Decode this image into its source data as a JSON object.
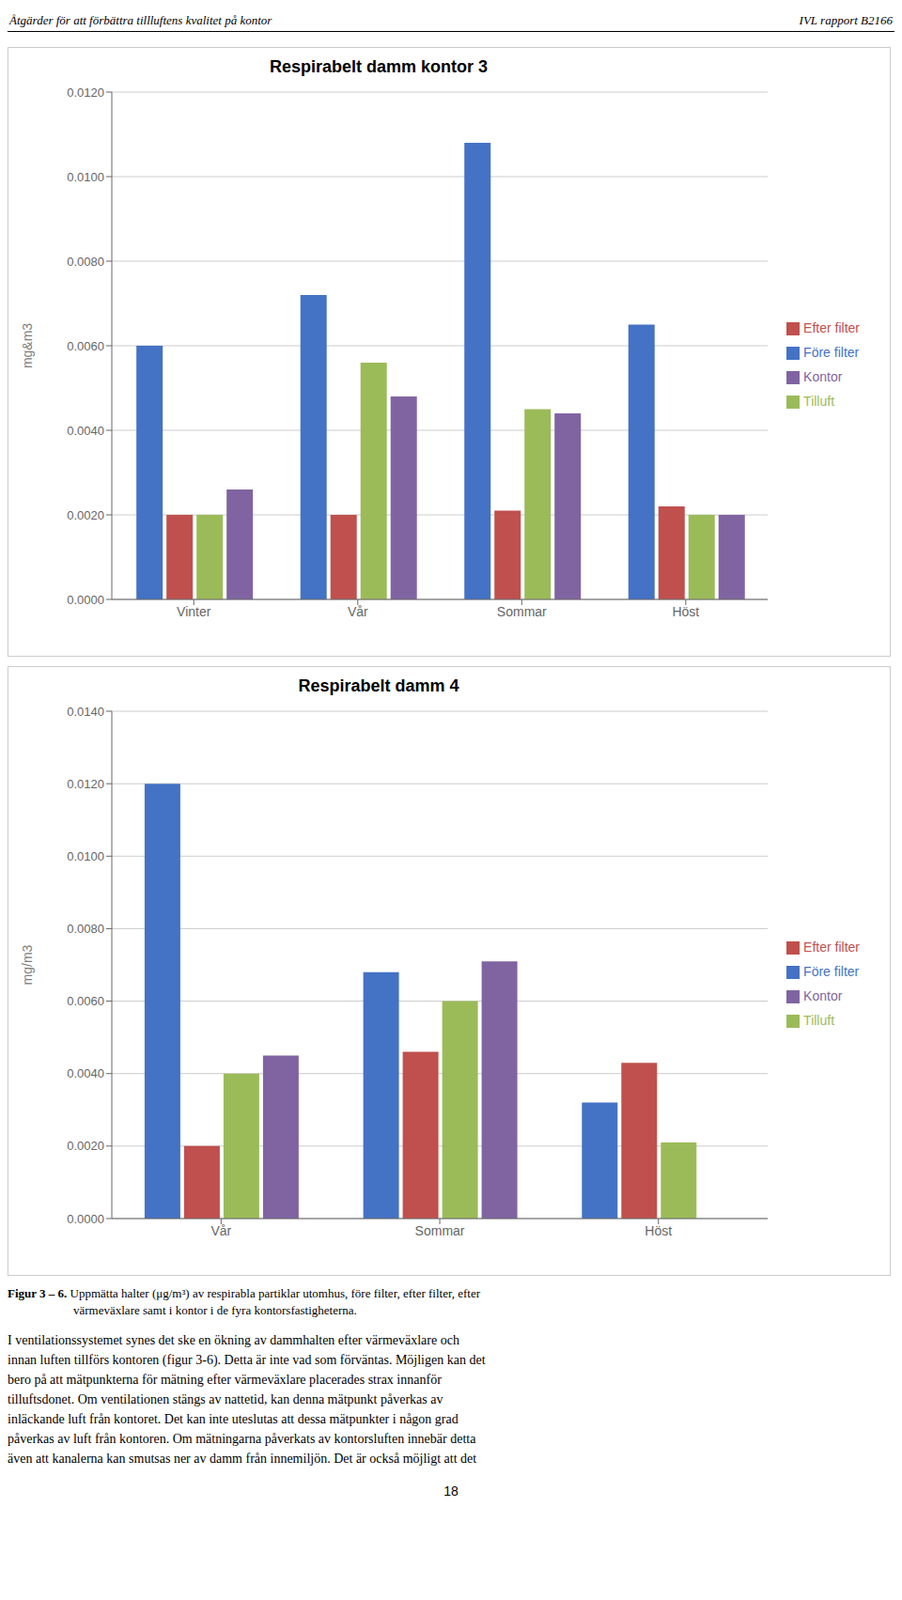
{
  "chart_data": [
    {
      "type": "bar",
      "title": "Respirabelt damm kontor 3",
      "ylabel": "mg&m3",
      "categories": [
        "Vinter",
        "Vår",
        "Sommar",
        "Höst"
      ],
      "series": [
        {
          "name": "Före filter",
          "color": "#4472C4",
          "values": [
            0.006,
            0.0072,
            0.0108,
            0.0065
          ]
        },
        {
          "name": "Efter filter",
          "color": "#C0504D",
          "values": [
            0.002,
            0.002,
            0.0021,
            0.0022
          ]
        },
        {
          "name": "Tilluft",
          "color": "#9BBB59",
          "values": [
            0.002,
            0.0056,
            0.0045,
            0.002
          ]
        },
        {
          "name": "Kontor",
          "color": "#8064A2",
          "values": [
            0.0026,
            0.0048,
            0.0044,
            0.002
          ]
        }
      ],
      "ylim": [
        0,
        0.012
      ],
      "yticks": [
        {
          "value": 0,
          "label": "0.0000"
        },
        {
          "value": 0.002,
          "label": "0.0020"
        },
        {
          "value": 0.004,
          "label": "0.0040"
        },
        {
          "value": 0.006,
          "label": "0.0060"
        },
        {
          "value": 0.008,
          "label": "0.0080"
        },
        {
          "value": 0.01,
          "label": "0.0100"
        },
        {
          "value": 0.012,
          "label": "0.0120"
        }
      ],
      "grid": true,
      "legend": "right"
    },
    {
      "type": "bar",
      "title": "Respirabelt damm 4",
      "ylabel": "mg/m3",
      "categories": [
        "Vår",
        "Sommar",
        "Höst"
      ],
      "series": [
        {
          "name": "Före filter",
          "color": "#4472C4",
          "values": [
            0.012,
            0.0068,
            0.0032
          ]
        },
        {
          "name": "Efter filter",
          "color": "#C0504D",
          "values": [
            0.002,
            0.0046,
            0.0043
          ]
        },
        {
          "name": "Tilluft",
          "color": "#9BBB59",
          "values": [
            0.004,
            0.006,
            0.0021
          ]
        },
        {
          "name": "Kontor",
          "color": "#8064A2",
          "values": [
            0.0045,
            0.0071,
            0.0
          ]
        }
      ],
      "ylim": [
        0,
        0.014
      ],
      "yticks": [
        {
          "value": 0,
          "label": "0.0000"
        },
        {
          "value": 0.002,
          "label": "0.0020"
        },
        {
          "value": 0.004,
          "label": "0.0040"
        },
        {
          "value": 0.006,
          "label": "0.0060"
        },
        {
          "value": 0.008,
          "label": "0.0080"
        },
        {
          "value": 0.01,
          "label": "0.0100"
        },
        {
          "value": 0.012,
          "label": "0.0120"
        },
        {
          "value": 0.014,
          "label": "0.0140"
        }
      ],
      "grid": true,
      "legend": "right"
    }
  ],
  "annotations": {
    "header": [
      "Åtgärder för att förbättra tillluftens kvalitet på kontor",
      "IVL rapport B2166"
    ],
    "caption": [
      "Figur 3 – 6.",
      "Uppmätta halter (μg/m³) av respirabla partiklar utomhus, före filter, efter filter, efter",
      "värmeväxlare samt i kontor i de fyra kontorsfastigheterna."
    ],
    "body": [
      "I ventilationssystemet synes det ske en ökning av dammhalten efter värmeväxlare och",
      "innan luften tillförs kontoren (figur 3-6). Detta är inte vad som förväntas. Möjligen kan det",
      "bero på att mätpunkterna för mätning efter värmeväxlare placerades strax innanför",
      "tilluftsdonet. Om ventilationen stängs av nattetid, kan denna mätpunkt påverkas av",
      "inläckande luft från kontoret. Det kan inte uteslutas att dessa mätpunkter i någon grad",
      "påverkas av luft från kontoren. Om mätningarna påverkats av kontorsluften innebär detta",
      "även att kanalerna kan smutsas ner av damm från innemiljön. Det är också möjligt att det"
    ],
    "page": "18"
  }
}
